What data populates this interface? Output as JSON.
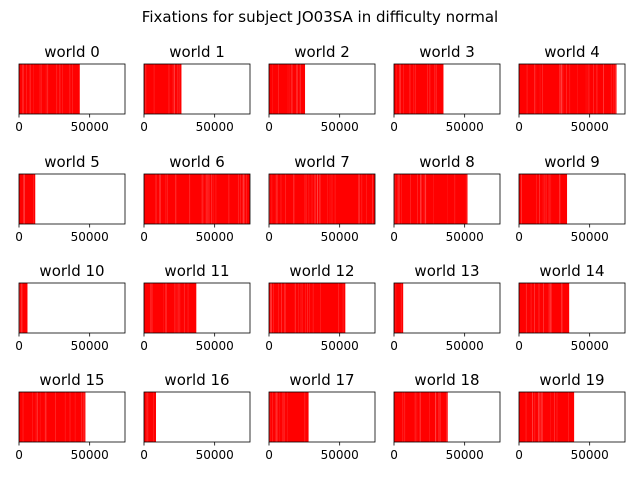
{
  "suptitle": "Fixations for subject JO03SA in difficulty normal",
  "chart_data": {
    "type": "event-strip",
    "title": "Fixations for subject JO03SA in difficulty normal",
    "grid": {
      "rows": 4,
      "cols": 5
    },
    "xlim": [
      0,
      75000
    ],
    "xticks": [
      0,
      50000
    ],
    "xtick_labels": [
      "0",
      "50000"
    ],
    "yticks": [],
    "line_color": "#ff0000",
    "panels": [
      {
        "title": "world 0",
        "extent": 43000
      },
      {
        "title": "world 1",
        "extent": 26500
      },
      {
        "title": "world 2",
        "extent": 25500
      },
      {
        "title": "world 3",
        "extent": 35000
      },
      {
        "title": "world 4",
        "extent": 69000
      },
      {
        "title": "world 5",
        "extent": 11500
      },
      {
        "title": "world 6",
        "extent": 75000
      },
      {
        "title": "world 7",
        "extent": 75000
      },
      {
        "title": "world 8",
        "extent": 52000
      },
      {
        "title": "world 9",
        "extent": 34000
      },
      {
        "title": "world 10",
        "extent": 6000
      },
      {
        "title": "world 11",
        "extent": 37000
      },
      {
        "title": "world 12",
        "extent": 54000
      },
      {
        "title": "world 13",
        "extent": 6500
      },
      {
        "title": "world 14",
        "extent": 35500
      },
      {
        "title": "world 15",
        "extent": 47000
      },
      {
        "title": "world 16",
        "extent": 8500
      },
      {
        "title": "world 17",
        "extent": 28000
      },
      {
        "title": "world 18",
        "extent": 38000
      },
      {
        "title": "world 19",
        "extent": 39000
      }
    ]
  }
}
